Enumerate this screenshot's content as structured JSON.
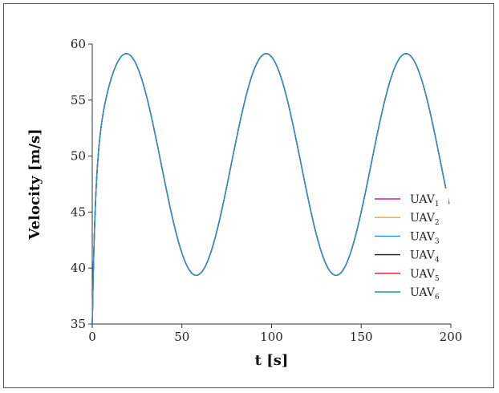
{
  "chart_data": {
    "type": "line",
    "title": "",
    "xlabel": "t [s]",
    "ylabel": "Velocity [m/s]",
    "xlim": [
      0,
      200
    ],
    "ylim": [
      35,
      60
    ],
    "xticks": [
      0,
      50,
      100,
      150,
      200
    ],
    "yticks": [
      35,
      40,
      45,
      50,
      55,
      60
    ],
    "grid": false,
    "legend": "lower-right",
    "model": {
      "start_value": 35,
      "mean": 49.25,
      "amplitude": 9.9,
      "period": 78,
      "first_peak_t": 19,
      "last_value_t": 199,
      "last_value": 46.3
    },
    "series": [
      {
        "name": "UAV",
        "sub": "1",
        "color": "#e0189a"
      },
      {
        "name": "UAV",
        "sub": "2",
        "color": "#f5a623"
      },
      {
        "name": "UAV",
        "sub": "3",
        "color": "#2f8fd6"
      },
      {
        "name": "UAV",
        "sub": "4",
        "color": "#1a1a1a"
      },
      {
        "name": "UAV",
        "sub": "5",
        "color": "#d81b3a"
      },
      {
        "name": "UAV",
        "sub": "6",
        "color": "#1aa06b"
      }
    ]
  }
}
